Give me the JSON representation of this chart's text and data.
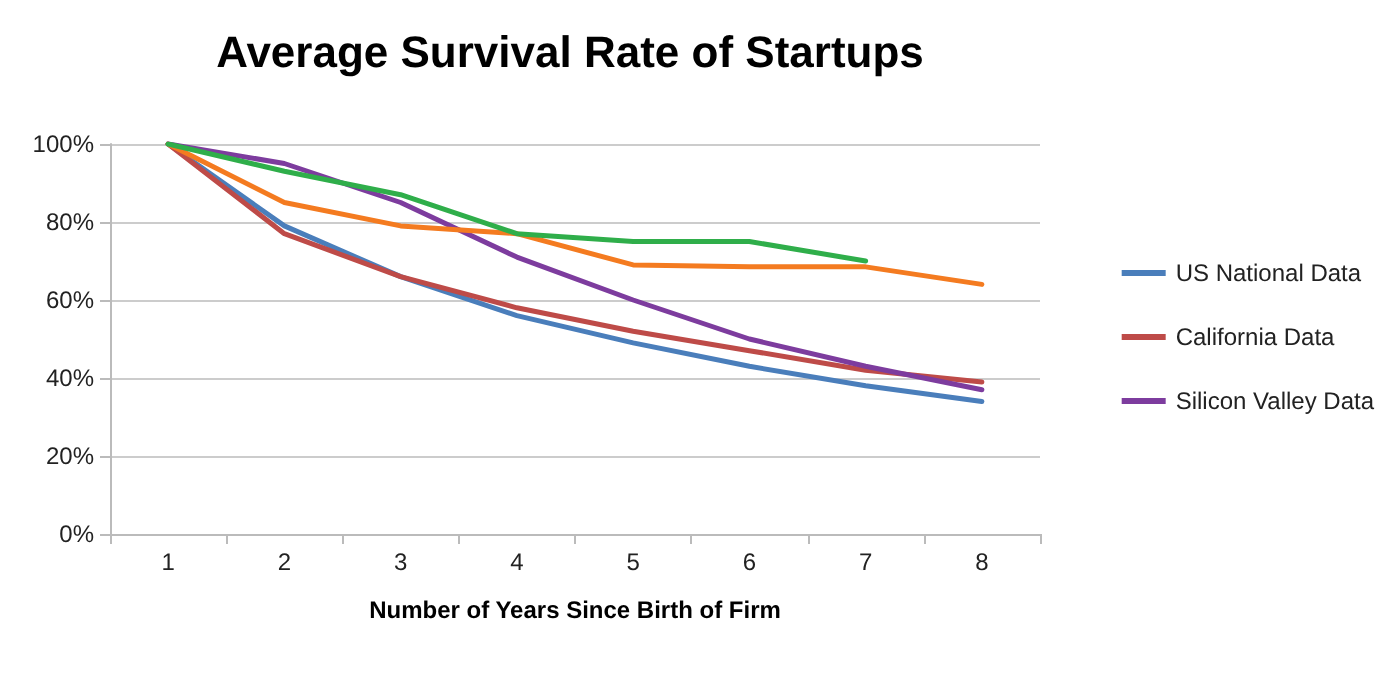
{
  "chart_data": {
    "type": "line",
    "title": "Average Survival Rate of Startups",
    "xlabel": "Number of Years Since Birth of Firm",
    "categories": [
      "1",
      "2",
      "3",
      "4",
      "5",
      "6",
      "7",
      "8"
    ],
    "series": [
      {
        "name": "US National Data",
        "color": "#4a7ebb",
        "values": [
          100,
          79,
          66,
          56,
          49,
          43,
          38,
          34
        ]
      },
      {
        "name": "California Data",
        "color": "#be4b48",
        "values": [
          100,
          77,
          66,
          58,
          52,
          47,
          42,
          39
        ]
      },
      {
        "name": "Silicon Valley Data",
        "color": "#7d3c9e",
        "values": [
          100,
          95,
          85,
          71,
          60,
          50,
          43,
          37
        ]
      },
      {
        "color": "#f47b20",
        "values": [
          100,
          85,
          79,
          77,
          69,
          68.5,
          68.5,
          64
        ]
      },
      {
        "color": "#2fae4a",
        "values": [
          100,
          93,
          87,
          77,
          75,
          75,
          70,
          null
        ]
      }
    ],
    "ylim": [
      0,
      100
    ],
    "yticks": [
      {
        "value": 0,
        "label": "0%"
      },
      {
        "value": 20,
        "label": "20%"
      },
      {
        "value": 40,
        "label": "40%"
      },
      {
        "value": 60,
        "label": "60%"
      },
      {
        "value": 80,
        "label": "80%"
      },
      {
        "value": 100,
        "label": "100%"
      }
    ],
    "grid": "y",
    "legend": "right",
    "marker": "none",
    "line_style": "solid"
  }
}
